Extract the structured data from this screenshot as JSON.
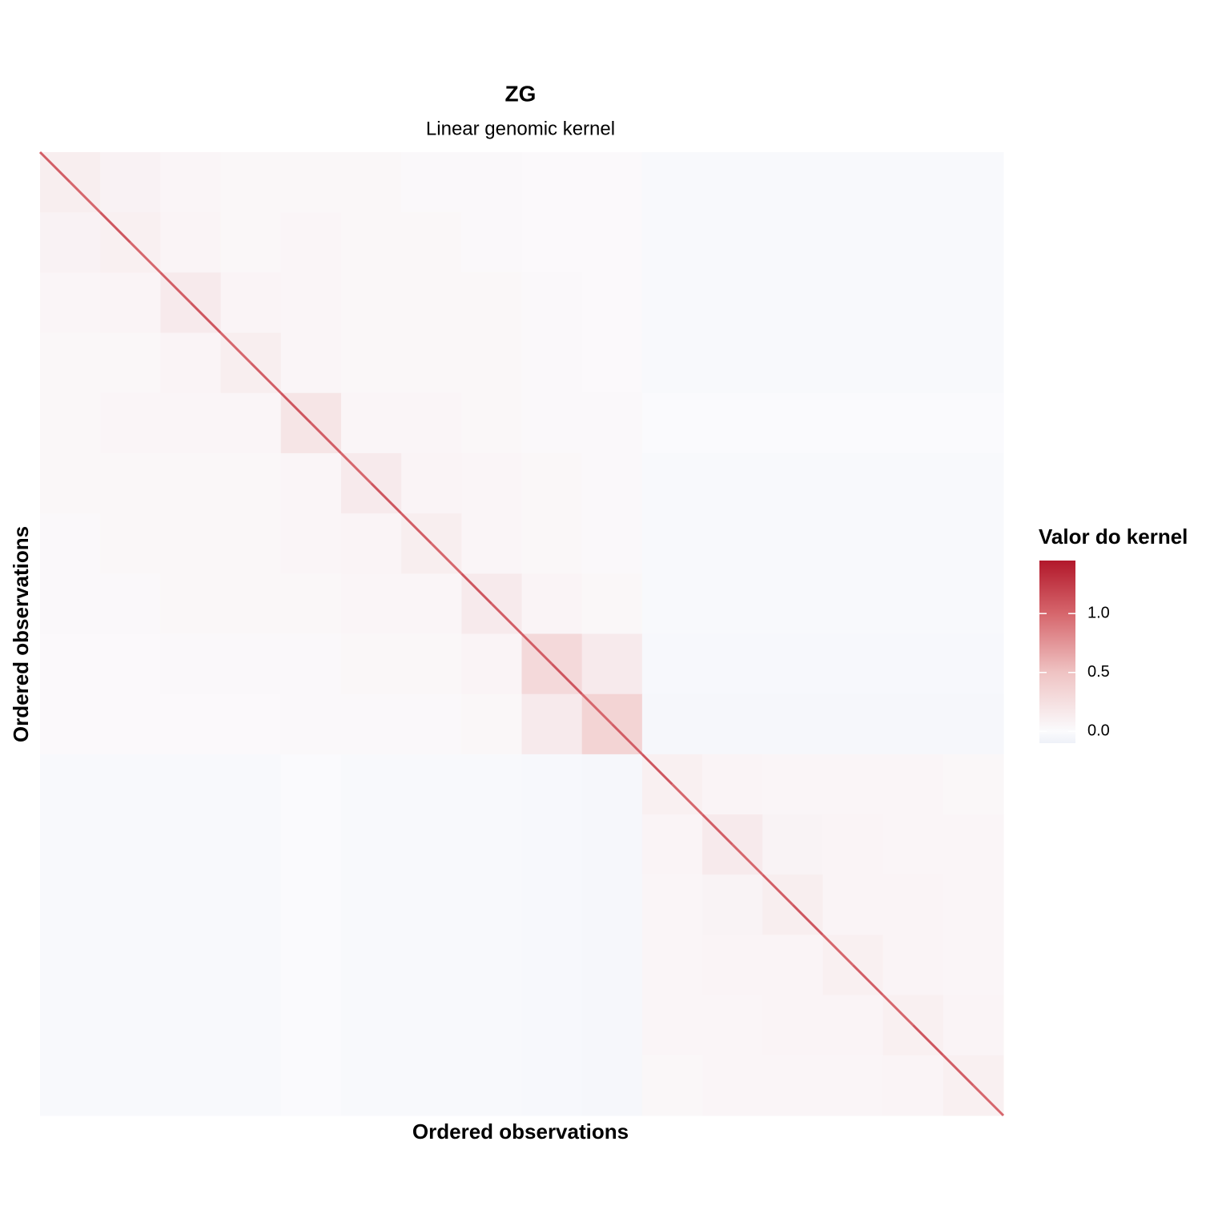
{
  "chart_data": {
    "type": "heatmap",
    "title": "ZG",
    "subtitle": "Linear genomic kernel",
    "x_label": "Ordered observations",
    "y_label": "Ordered observations",
    "legend_title": "Valor do kernel",
    "values": [
      [
        0.12,
        0.08,
        0.05,
        0.04,
        0.04,
        0.04,
        0.03,
        0.03,
        0.02,
        0.02,
        -0.02,
        -0.02,
        -0.02,
        -0.02,
        -0.02,
        -0.02
      ],
      [
        0.08,
        0.1,
        0.06,
        0.04,
        0.05,
        0.04,
        0.04,
        0.03,
        0.02,
        0.02,
        -0.02,
        -0.02,
        -0.02,
        -0.02,
        -0.02,
        -0.02
      ],
      [
        0.05,
        0.06,
        0.15,
        0.06,
        0.05,
        0.04,
        0.04,
        0.04,
        0.03,
        0.02,
        -0.02,
        -0.02,
        -0.02,
        -0.02,
        -0.02,
        -0.02
      ],
      [
        0.04,
        0.04,
        0.06,
        0.12,
        0.05,
        0.04,
        0.04,
        0.04,
        0.03,
        0.02,
        -0.02,
        -0.02,
        -0.02,
        -0.02,
        -0.02,
        -0.02
      ],
      [
        0.04,
        0.05,
        0.05,
        0.05,
        0.2,
        0.05,
        0.05,
        0.04,
        0.03,
        0.03,
        -0.01,
        -0.01,
        -0.01,
        -0.01,
        -0.01,
        -0.01
      ],
      [
        0.04,
        0.04,
        0.04,
        0.04,
        0.05,
        0.15,
        0.06,
        0.05,
        0.04,
        0.03,
        -0.02,
        -0.02,
        -0.02,
        -0.02,
        -0.02,
        -0.02
      ],
      [
        0.03,
        0.04,
        0.04,
        0.04,
        0.05,
        0.06,
        0.12,
        0.05,
        0.04,
        0.03,
        -0.02,
        -0.02,
        -0.02,
        -0.02,
        -0.02,
        -0.02
      ],
      [
        0.03,
        0.03,
        0.04,
        0.04,
        0.04,
        0.05,
        0.05,
        0.15,
        0.06,
        0.04,
        -0.02,
        -0.02,
        -0.02,
        -0.02,
        -0.02,
        -0.02
      ],
      [
        0.02,
        0.02,
        0.03,
        0.03,
        0.03,
        0.04,
        0.04,
        0.06,
        0.3,
        0.15,
        -0.03,
        -0.03,
        -0.03,
        -0.03,
        -0.03,
        -0.03
      ],
      [
        0.02,
        0.02,
        0.02,
        0.02,
        0.03,
        0.03,
        0.03,
        0.04,
        0.15,
        0.35,
        -0.04,
        -0.04,
        -0.04,
        -0.04,
        -0.04,
        -0.04
      ],
      [
        -0.02,
        -0.02,
        -0.02,
        -0.02,
        -0.01,
        -0.02,
        -0.02,
        -0.02,
        -0.03,
        -0.04,
        0.1,
        0.06,
        0.05,
        0.05,
        0.05,
        0.04
      ],
      [
        -0.02,
        -0.02,
        -0.02,
        -0.02,
        -0.01,
        -0.02,
        -0.02,
        -0.02,
        -0.03,
        -0.04,
        0.06,
        0.15,
        0.07,
        0.06,
        0.05,
        0.05
      ],
      [
        -0.02,
        -0.02,
        -0.02,
        -0.02,
        -0.01,
        -0.02,
        -0.02,
        -0.02,
        -0.03,
        -0.04,
        0.05,
        0.07,
        0.12,
        0.06,
        0.06,
        0.05
      ],
      [
        -0.02,
        -0.02,
        -0.02,
        -0.02,
        -0.01,
        -0.02,
        -0.02,
        -0.02,
        -0.03,
        -0.04,
        0.05,
        0.06,
        0.06,
        0.1,
        0.06,
        0.05
      ],
      [
        -0.02,
        -0.02,
        -0.02,
        -0.02,
        -0.01,
        -0.02,
        -0.02,
        -0.02,
        -0.03,
        -0.04,
        0.05,
        0.05,
        0.06,
        0.06,
        0.1,
        0.06
      ],
      [
        -0.02,
        -0.02,
        -0.02,
        -0.02,
        -0.01,
        -0.02,
        -0.02,
        -0.02,
        -0.03,
        -0.04,
        0.04,
        0.05,
        0.05,
        0.05,
        0.06,
        0.1
      ]
    ],
    "diagonal": [
      1.05,
      1.0,
      1.1,
      1.0,
      1.05,
      1.1,
      1.0,
      1.05,
      1.1,
      1.05,
      1.0,
      1.1,
      1.05,
      1.0,
      1.1,
      1.05,
      1.05,
      1.1,
      1.0,
      1.05,
      1.1,
      1.0,
      1.05,
      1.0,
      1.05,
      1.1,
      1.0,
      1.05,
      1.0,
      1.1,
      1.05,
      1.0
    ],
    "clim": [
      -0.1,
      1.45
    ],
    "cticks": [
      {
        "value": 0,
        "label": "0.0"
      },
      {
        "value": 0.5,
        "label": "0.5"
      },
      {
        "value": 1,
        "label": "1.0"
      }
    ],
    "colorscale": [
      [
        -0.1,
        "#eef1f8"
      ],
      [
        0,
        "#fbfbfd"
      ],
      [
        0.5,
        "#efc3c3"
      ],
      [
        1,
        "#d6666c"
      ],
      [
        1.45,
        "#b2182b"
      ]
    ]
  }
}
